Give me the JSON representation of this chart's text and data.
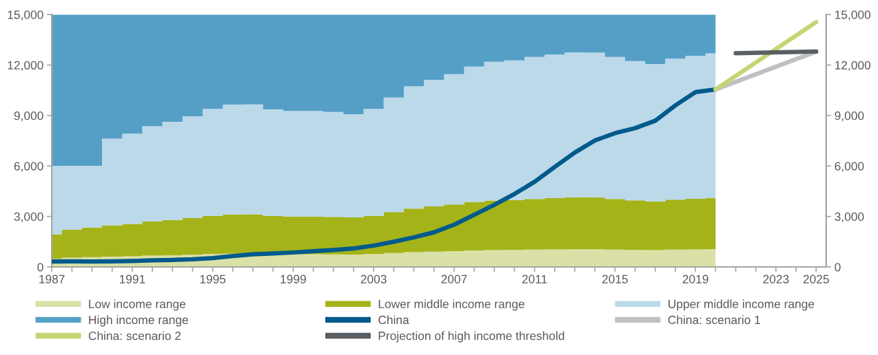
{
  "chart_data": {
    "type": "area",
    "stacked": true,
    "x": [
      1987,
      1988,
      1989,
      1990,
      1991,
      1992,
      1993,
      1994,
      1995,
      1996,
      1997,
      1998,
      1999,
      2000,
      2001,
      2002,
      2003,
      2004,
      2005,
      2006,
      2007,
      2008,
      2009,
      2010,
      2011,
      2012,
      2013,
      2014,
      2015,
      2016,
      2017,
      2018,
      2019,
      2020
    ],
    "series": [
      {
        "name": "Low income range",
        "color": "#dae0a6",
        "values": [
          480,
          550,
          580,
          610,
          640,
          680,
          700,
          730,
          770,
          790,
          790,
          760,
          760,
          760,
          750,
          740,
          770,
          830,
          880,
          910,
          940,
          980,
          1000,
          1010,
          1030,
          1040,
          1050,
          1050,
          1030,
          1010,
          1000,
          1030,
          1040,
          1050
        ]
      },
      {
        "name": "Lower middle income range",
        "color": "#a4b318",
        "values": [
          1460,
          1660,
          1760,
          1860,
          1920,
          2020,
          2090,
          2170,
          2270,
          2330,
          2340,
          2270,
          2240,
          2240,
          2230,
          2200,
          2270,
          2430,
          2590,
          2690,
          2770,
          2880,
          2950,
          2970,
          3010,
          3050,
          3080,
          3080,
          3010,
          2950,
          2900,
          2970,
          3010,
          3050
        ]
      },
      {
        "name": "Upper middle income range",
        "color": "#bcd9e9",
        "values": [
          4060,
          3800,
          3670,
          5160,
          5360,
          5660,
          5840,
          6060,
          6350,
          6530,
          6530,
          6330,
          6270,
          6270,
          6230,
          6140,
          6350,
          6810,
          7260,
          7520,
          7750,
          8050,
          8250,
          8300,
          8440,
          8530,
          8620,
          8610,
          8440,
          8280,
          8160,
          8380,
          8490,
          8600
        ]
      },
      {
        "name": "High income range",
        "color": "#559fc7",
        "values": [
          9000,
          8990,
          8990,
          7370,
          7080,
          6640,
          6370,
          6040,
          5610,
          5350,
          5340,
          5640,
          5730,
          5730,
          5790,
          5920,
          5610,
          4930,
          4270,
          3880,
          3540,
          3090,
          2800,
          2720,
          2520,
          2380,
          2250,
          2260,
          2520,
          2760,
          2940,
          2620,
          2460,
          2300
        ]
      },
      {
        "name": "China",
        "type": "line",
        "color": "#005a8c",
        "x": [
          1987,
          1988,
          1989,
          1990,
          1991,
          1992,
          1993,
          1994,
          1995,
          1996,
          1997,
          1998,
          1999,
          2000,
          2001,
          2002,
          2003,
          2004,
          2005,
          2006,
          2007,
          2008,
          2009,
          2010,
          2011,
          2012,
          2013,
          2014,
          2015,
          2016,
          2017,
          2018,
          2019,
          2020
        ],
        "values": [
          320,
          330,
          320,
          330,
          350,
          390,
          420,
          460,
          530,
          650,
          750,
          800,
          860,
          940,
          1010,
          1100,
          1270,
          1500,
          1760,
          2060,
          2510,
          3100,
          3690,
          4340,
          5060,
          5940,
          6800,
          7520,
          7950,
          8250,
          8690,
          9600,
          10390,
          10550
        ]
      },
      {
        "name": "China: scenario 1",
        "type": "line",
        "color": "#bfc0c2",
        "x": [
          2020,
          2025
        ],
        "values": [
          10550,
          12800
        ]
      },
      {
        "name": "China: scenario 2",
        "type": "line",
        "color": "#c8d373",
        "x": [
          2020,
          2025
        ],
        "values": [
          10550,
          14550
        ]
      },
      {
        "name": "Projection of high income threshold",
        "type": "line",
        "color": "#5a5f63",
        "x": [
          2021,
          2025
        ],
        "values": [
          12700,
          12800
        ]
      }
    ],
    "xlim": [
      1987,
      2025.5
    ],
    "xticks": [
      1987,
      {
        "value": 1988,
        "label": null
      },
      {
        "value": 1989,
        "label": null
      },
      {
        "value": 1990,
        "label": null
      },
      1991,
      {
        "value": 1992,
        "label": null
      },
      {
        "value": 1993,
        "label": null
      },
      {
        "value": 1994,
        "label": null
      },
      1995,
      {
        "value": 1996,
        "label": null
      },
      {
        "value": 1997,
        "label": null
      },
      {
        "value": 1998,
        "label": null
      },
      1999,
      {
        "value": 2000,
        "label": null
      },
      {
        "value": 2001,
        "label": null
      },
      {
        "value": 2002,
        "label": null
      },
      2003,
      {
        "value": 2004,
        "label": null
      },
      {
        "value": 2005,
        "label": null
      },
      {
        "value": 2006,
        "label": null
      },
      2007,
      {
        "value": 2008,
        "label": null
      },
      {
        "value": 2009,
        "label": null
      },
      {
        "value": 2010,
        "label": null
      },
      2011,
      {
        "value": 2012,
        "label": null
      },
      {
        "value": 2013,
        "label": null
      },
      {
        "value": 2014,
        "label": null
      },
      2015,
      {
        "value": 2016,
        "label": null
      },
      {
        "value": 2017,
        "label": null
      },
      {
        "value": 2018,
        "label": null
      },
      2019,
      {
        "value": 2020,
        "label": null
      },
      {
        "value": 2021,
        "label": null
      },
      {
        "value": 2022,
        "label": null
      },
      2023,
      {
        "value": 2024,
        "label": null
      },
      2025
    ],
    "ylim": [
      0,
      15000
    ],
    "yticks": [
      {
        "value": 0,
        "label": "0"
      },
      {
        "value": 3000,
        "label": "3,000"
      },
      {
        "value": 6000,
        "label": "6,000"
      },
      {
        "value": 9000,
        "label": "9,000"
      },
      {
        "value": 12000,
        "label": "12,000"
      },
      {
        "value": 15000,
        "label": "15,000"
      }
    ],
    "y2lim": [
      0,
      15000
    ],
    "y2ticks": [
      {
        "value": 0,
        "label": "0"
      },
      {
        "value": 3000,
        "label": "3,000"
      },
      {
        "value": 6000,
        "label": "6,000"
      },
      {
        "value": 9000,
        "label": "9,000"
      },
      {
        "value": 12000,
        "label": "12,000"
      },
      {
        "value": 15000,
        "label": "15,000"
      }
    ],
    "legend": "bottom",
    "grid": false
  }
}
